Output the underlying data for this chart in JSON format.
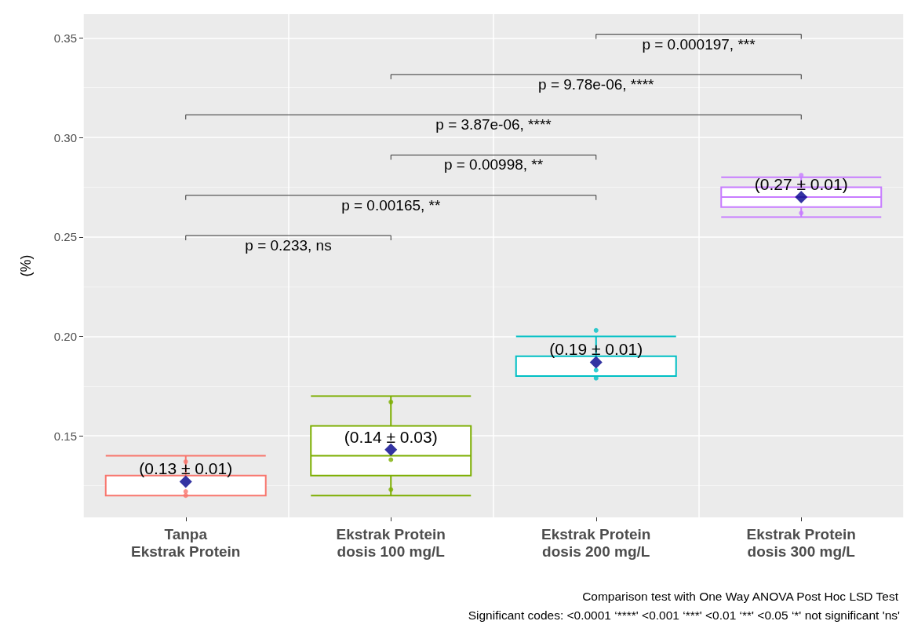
{
  "chart_data": {
    "type": "box",
    "ylabel": "(%)",
    "categories": [
      "Tanpa\nEkstrak Protein",
      "Ekstrak Protein\ndosis 100 mg/L",
      "Ekstrak Protein\ndosis 200 mg/L",
      "Ekstrak Protein\ndosis 300 mg/L"
    ],
    "colors": [
      "#f8766d",
      "#7cae00",
      "#00bfc4",
      "#c77cff"
    ],
    "boxes": [
      {
        "low": 0.12,
        "q1": 0.12,
        "median": 0.12,
        "q3": 0.13,
        "high": 0.14
      },
      {
        "low": 0.12,
        "q1": 0.13,
        "median": 0.14,
        "q3": 0.155,
        "high": 0.17
      },
      {
        "low": 0.18,
        "q1": 0.18,
        "median": 0.18,
        "q3": 0.19,
        "high": 0.2
      },
      {
        "low": 0.26,
        "q1": 0.265,
        "median": 0.27,
        "q3": 0.275,
        "high": 0.28
      }
    ],
    "series": [
      {
        "type": "scatter",
        "color": "#00008b",
        "marker": "diamond",
        "x": [
          "Tanpa\nEkstrak Protein",
          "Ekstrak Protein\ndosis 100 mg/L",
          "Ekstrak Protein\ndosis 200 mg/L",
          "Ekstrak Protein\ndosis 300 mg/L"
        ],
        "values": [
          0.127,
          0.143,
          0.187,
          0.27
        ]
      },
      {
        "type": "scatter",
        "marker": "circle",
        "colors": [
          "#f8766d",
          "#f8766d",
          "#f8766d",
          "#7cae00",
          "#7cae00",
          "#7cae00",
          "#00bfc4",
          "#00bfc4",
          "#00bfc4",
          "#c77cff",
          "#c77cff"
        ],
        "x": [
          "Tanpa\nEkstrak Protein",
          "Tanpa\nEkstrak Protein",
          "Tanpa\nEkstrak Protein",
          "Ekstrak Protein\ndosis 100 mg/L",
          "Ekstrak Protein\ndosis 100 mg/L",
          "Ekstrak Protein\ndosis 100 mg/L",
          "Ekstrak Protein\ndosis 200 mg/L",
          "Ekstrak Protein\ndosis 200 mg/L",
          "Ekstrak Protein\ndosis 200 mg/L",
          "Ekstrak Protein\ndosis 300 mg/L",
          "Ekstrak Protein\ndosis 300 mg/L"
        ],
        "values": [
          0.137,
          0.122,
          0.12,
          0.167,
          0.138,
          0.123,
          0.203,
          0.183,
          0.179,
          0.281,
          0.262
        ]
      }
    ],
    "ylim": [
      0.109,
      0.362
    ],
    "yticks": [
      0.15,
      {
        "value": 0.2,
        "label": "0.20"
      },
      0.25,
      {
        "value": 0.3,
        "label": "0.30"
      },
      0.35
    ],
    "grid": true,
    "annotations": [
      "p = 0.233, ns",
      "p = 0.00165, **",
      "p = 0.00998, **",
      "p = 3.87e-06, ****",
      "p = 9.78e-06, ****",
      "p = 0.000197, ***",
      {
        "text": "(0.13 ± 0.01)",
        "x": "Tanpa\nEkstrak Protein",
        "y": 0.127
      },
      {
        "text": "(0.14 ± 0.03)",
        "x": "Ekstrak Protein\ndosis 100 mg/L",
        "y": 0.143
      },
      {
        "text": "(0.19 ± 0.01)",
        "x": "Ekstrak Protein\ndosis 200 mg/L",
        "y": 0.187
      },
      {
        "text": "(0.27 ± 0.01)",
        "x": "Ekstrak Protein\ndosis 300 mg/L",
        "y": 0.27
      },
      "Comparison test with One Way ANOVA Post Hoc LSD Test",
      "Significant codes: <0.0001 ‘****' <0.001 ‘***' <0.01 ‘**' <0.05 ‘*' not significant 'ns'"
    ]
  }
}
